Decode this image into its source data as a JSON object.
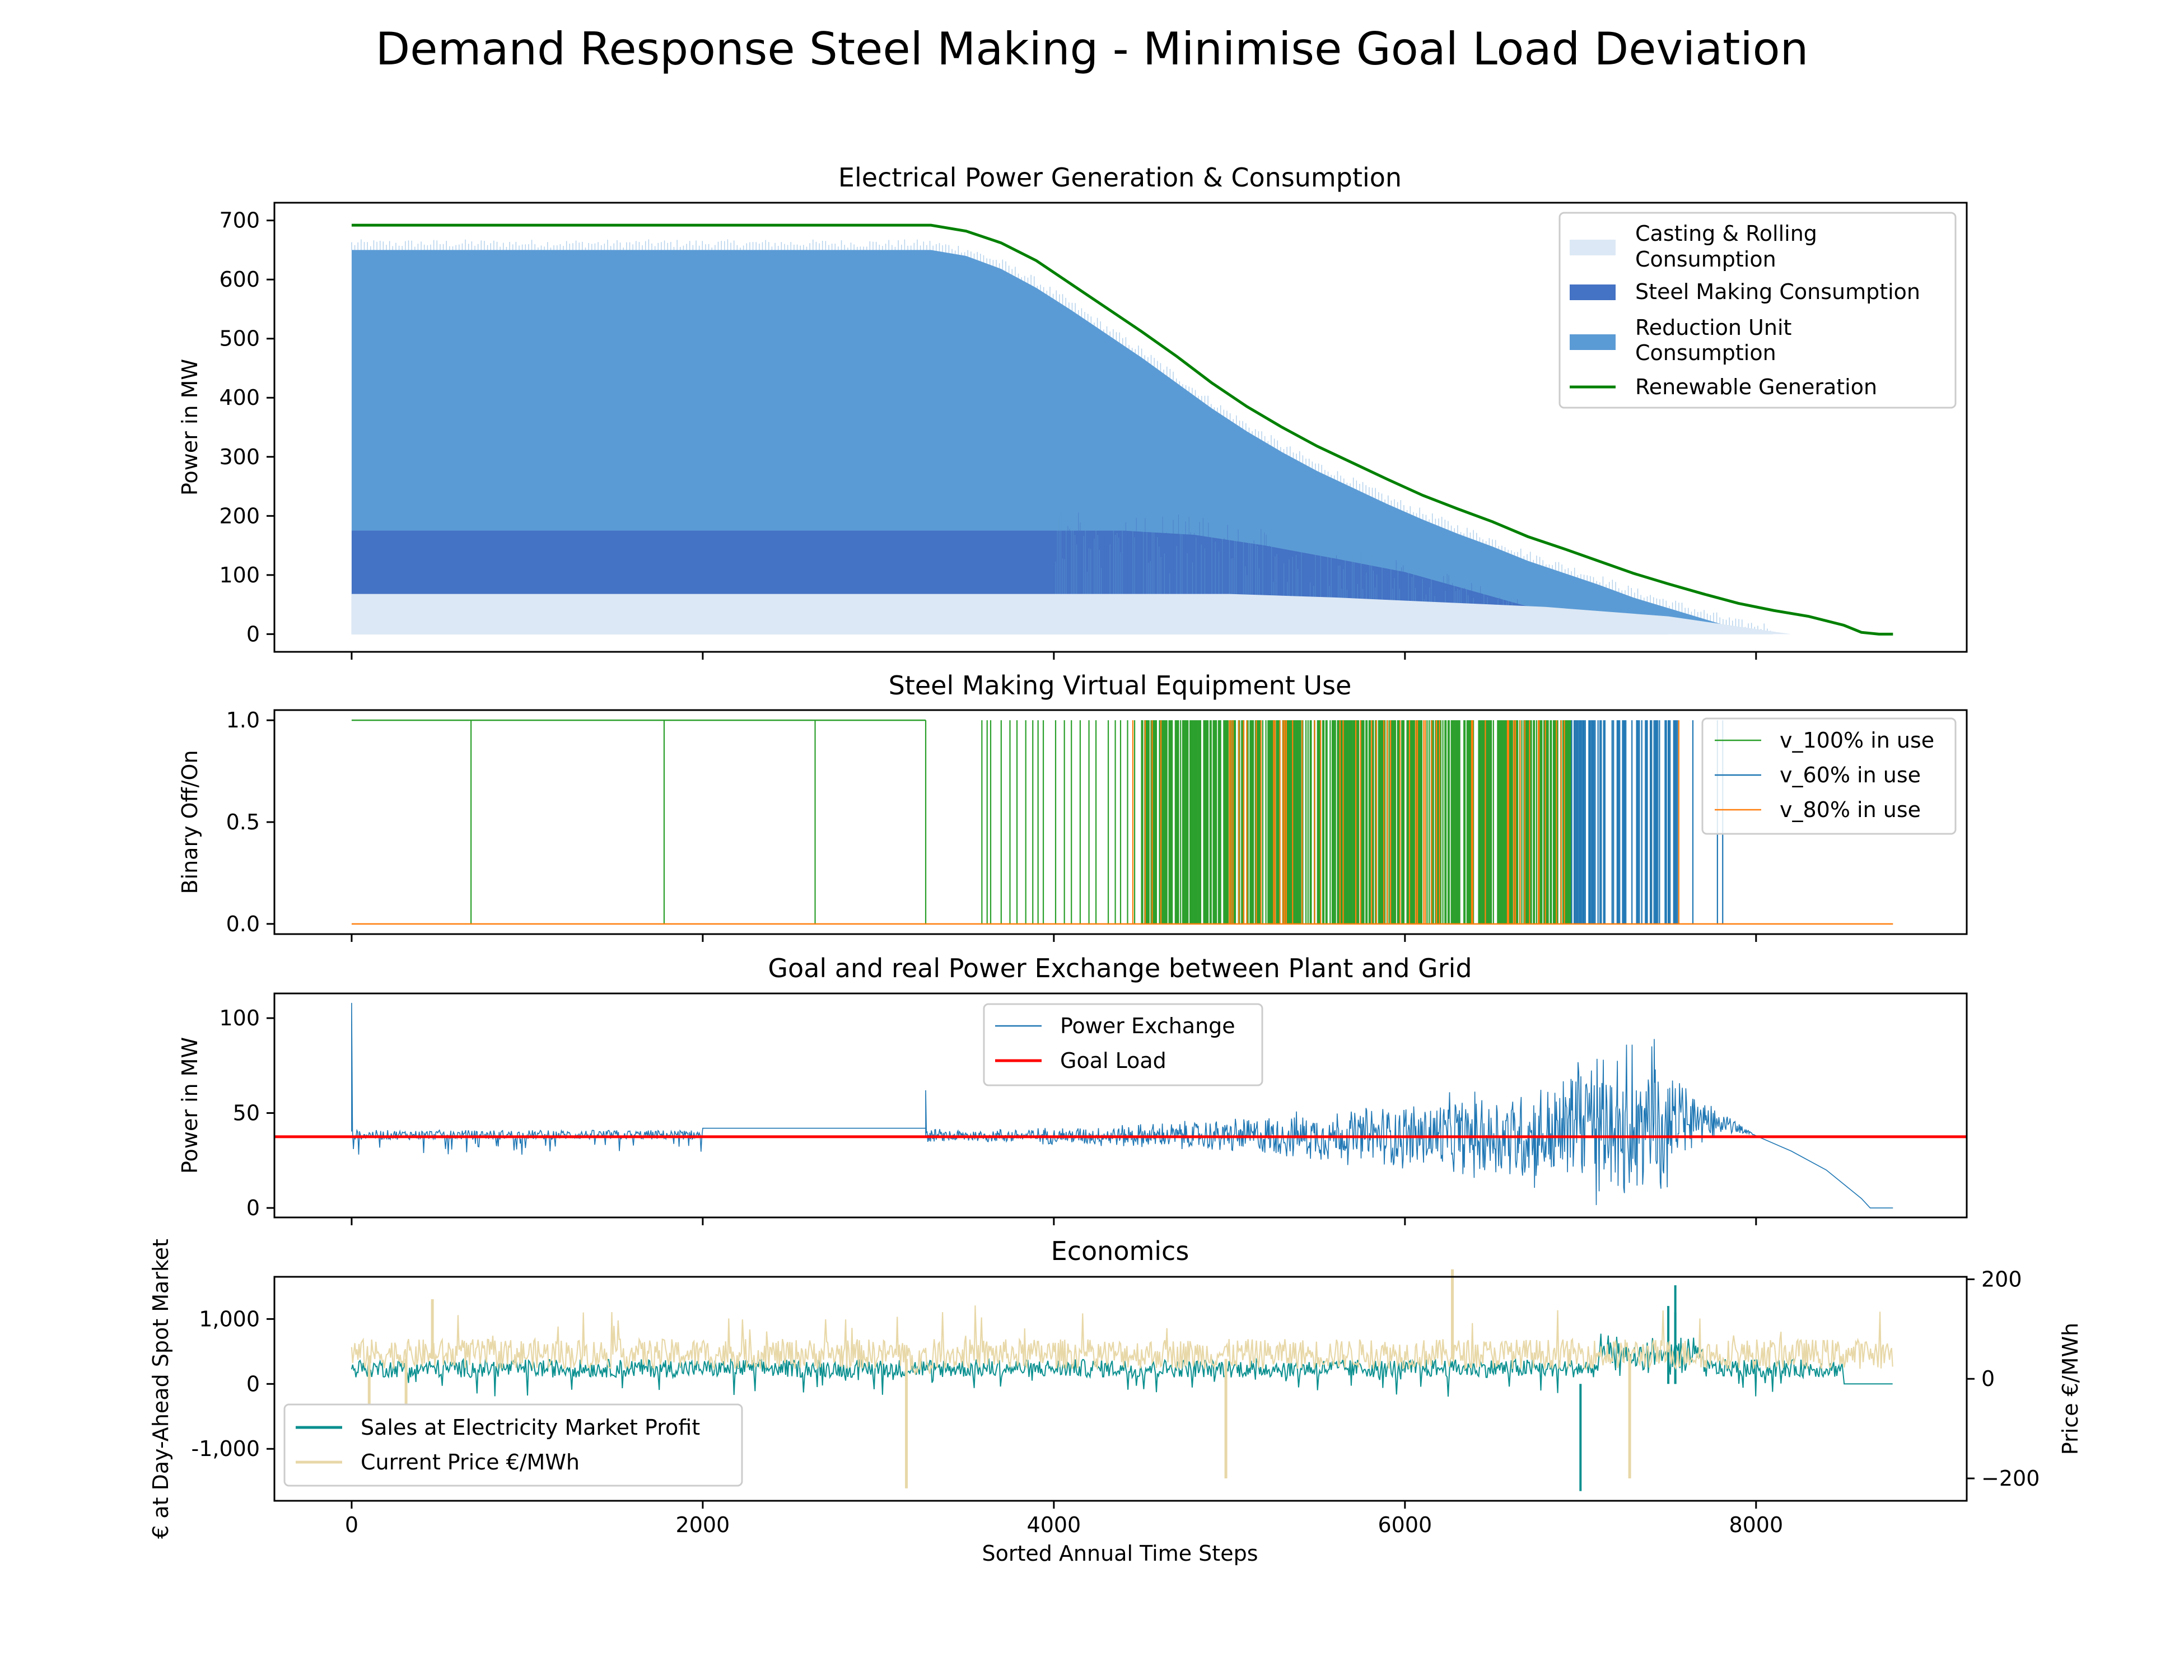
{
  "figure": {
    "suptitle": "Demand Response Steel Making - Minimise Goal Load Deviation"
  },
  "colors": {
    "casting": "#dce8f5",
    "steel": "#4472c4",
    "reduction": "#5b9bd5",
    "renewable": "#008000",
    "v100": "#2ca02c",
    "v60": "#1f77b4",
    "v80": "#ff7f0e",
    "exchange": "#1f77b4",
    "goal": "#ff0000",
    "sales": "#0a8f8f",
    "price": "#e8d8a8"
  },
  "chart_data": [
    {
      "id": "generation",
      "type": "area",
      "title": "Electrical Power Generation & Consumption",
      "ylabel": "Power in MW",
      "xlim": [
        -440,
        9200
      ],
      "ylim": [
        -30,
        730
      ],
      "yticks": [
        0,
        100,
        200,
        300,
        400,
        500,
        600,
        700
      ],
      "yticklabels": [
        "0",
        "100",
        "200",
        "300",
        "400",
        "500",
        "600",
        "700"
      ],
      "legend_position": "top-right",
      "legend": [
        {
          "label": "Casting & Rolling",
          "label2": "Consumption",
          "kind": "patch",
          "color_key": "casting"
        },
        {
          "label": "Steel Making Consumption",
          "label2": "",
          "kind": "patch",
          "color_key": "steel"
        },
        {
          "label": "Reduction Unit",
          "label2": "Consumption",
          "kind": "patch",
          "color_key": "reduction"
        },
        {
          "label": "Renewable Generation",
          "label2": "",
          "kind": "line",
          "color_key": "renewable"
        }
      ],
      "series": [
        {
          "name": "Renewable Generation",
          "x": [
            0,
            3300,
            3500,
            3700,
            3900,
            4100,
            4300,
            4500,
            4700,
            4900,
            5100,
            5300,
            5500,
            5700,
            5900,
            6100,
            6300,
            6500,
            6700,
            6900,
            7100,
            7300,
            7500,
            7700,
            7900,
            8100,
            8300,
            8500,
            8600,
            8700,
            8780
          ],
          "y": [
            692,
            692,
            682,
            662,
            632,
            592,
            552,
            512,
            470,
            425,
            385,
            350,
            318,
            290,
            262,
            235,
            212,
            190,
            165,
            145,
            124,
            103,
            85,
            68,
            52,
            40,
            30,
            15,
            3,
            0,
            0
          ]
        },
        {
          "name": "Reduction Unit Consumption",
          "x": [
            0,
            3300,
            3500,
            3700,
            3900,
            4100,
            4300,
            4500,
            4700,
            4900,
            5100,
            5300,
            5500,
            5700,
            5900,
            6100,
            6300,
            6500,
            6700,
            6900,
            7100,
            7300,
            7500,
            7700,
            7900,
            8100
          ],
          "y": [
            650,
            650,
            640,
            618,
            586,
            548,
            508,
            468,
            425,
            382,
            343,
            308,
            276,
            248,
            220,
            194,
            170,
            148,
            124,
            104,
            84,
            62,
            44,
            26,
            8,
            0
          ]
        },
        {
          "name": "Steel Making Consumption",
          "x": [
            0,
            4400,
            4800,
            5200,
            5600,
            6000,
            6300,
            6600,
            6900,
            7200,
            7500
          ],
          "y": [
            175,
            175,
            168,
            150,
            128,
            105,
            80,
            55,
            30,
            12,
            0
          ]
        },
        {
          "name": "Casting & Rolling Consumption",
          "x": [
            0,
            5000,
            5600,
            6200,
            6800,
            7500,
            8200
          ],
          "y": [
            68,
            68,
            62,
            54,
            46,
            30,
            0
          ]
        }
      ]
    },
    {
      "id": "equipment",
      "type": "line",
      "title": "Steel Making Virtual Equipment Use",
      "ylabel": "Binary Off/On",
      "xlim": [
        -440,
        9200
      ],
      "ylim": [
        -0.05,
        1.05
      ],
      "yticks": [
        0,
        0.5,
        1
      ],
      "yticklabels": [
        "0.0",
        "0.5",
        "1.0"
      ],
      "legend_position": "top-right",
      "legend": [
        {
          "label": "v_100% in use",
          "color_key": "v100"
        },
        {
          "label": "v_60% in use",
          "color_key": "v60"
        },
        {
          "label": "v_80% in use",
          "color_key": "v80"
        }
      ],
      "series": [
        {
          "name": "v_100% in use",
          "baseline": 1,
          "spikes_x": [
            680,
            1780,
            2640,
            3270,
            3590,
            3620,
            3640,
            3700,
            3750,
            3790,
            3840,
            3880,
            3910,
            3940,
            4010,
            4060,
            4100,
            4150,
            4200,
            4240,
            4310,
            4350,
            4380,
            4420,
            4460,
            4500
          ],
          "dense_range": [
            4500,
            6950
          ],
          "dense_density": 0.75,
          "baseline_end": 3270
        },
        {
          "name": "v_80% in use",
          "spikes_x": [
            4450,
            4520,
            4560,
            4610,
            5020,
            5260,
            5520,
            5880,
            6180,
            6380,
            6590,
            6760,
            7400,
            7560
          ],
          "dense_range": [
            5000,
            7050
          ],
          "dense_density": 0.15
        },
        {
          "name": "v_60% in use",
          "spikes_x": [
            7100,
            7180,
            7240,
            7320,
            7380,
            7450,
            7500,
            7640,
            7780,
            7810
          ],
          "dense_range": [
            6950,
            7560
          ],
          "dense_density": 0.55
        }
      ]
    },
    {
      "id": "exchange",
      "type": "line",
      "title": "Goal and real Power Exchange between Plant and Grid",
      "ylabel": "Power in MW",
      "xlim": [
        -440,
        9200
      ],
      "ylim": [
        -5,
        113
      ],
      "yticks": [
        0,
        50,
        100
      ],
      "yticklabels": [
        "0",
        "50",
        "100"
      ],
      "legend_position": "upper-center",
      "legend": [
        {
          "label": "Power Exchange",
          "color_key": "exchange"
        },
        {
          "label": "Goal Load",
          "color_key": "goal"
        }
      ],
      "series": [
        {
          "name": "Goal Load",
          "y": 37.5
        },
        {
          "name": "Power Exchange",
          "base": 38,
          "segments": [
            {
              "x0": 0,
              "x1": 2000,
              "kind": "band",
              "top": 41,
              "bottom": 36,
              "dips_to": 28
            },
            {
              "x0": 2000,
              "x1": 3270,
              "kind": "flat",
              "y": 42
            },
            {
              "x0": 3270,
              "x1": 8000,
              "kind": "noisy"
            },
            {
              "x0": 7500,
              "x1": 8000,
              "kind": "decline",
              "from": 70,
              "to": 38
            },
            {
              "x0": 8000,
              "x1": 8780,
              "kind": "tail",
              "points_x": [
                8000,
                8200,
                8400,
                8600,
                8650,
                8780
              ],
              "points_y": [
                38,
                30,
                20,
                5,
                0,
                0
              ]
            }
          ],
          "peaks": [
            {
              "x": 0,
              "y": 108
            },
            {
              "x": 3270,
              "y": 62
            },
            {
              "x": 7420,
              "y": 89
            }
          ]
        }
      ]
    },
    {
      "id": "economics",
      "type": "line",
      "title": "Economics",
      "xlabel": "Sorted Annual Time Steps",
      "ylabel": "€ at Day-Ahead Spot Market",
      "ylabel_right": "Price €/MWh",
      "xlim": [
        -440,
        9200
      ],
      "ylim": [
        -1800,
        1650
      ],
      "ylim_right": [
        -245,
        205
      ],
      "xticks": [
        0,
        2000,
        4000,
        6000,
        8000
      ],
      "xticklabels": [
        "0",
        "2000",
        "4000",
        "6000",
        "8000"
      ],
      "yticks": [
        -1000,
        0,
        1000
      ],
      "yticklabels": [
        "-1,000",
        "0",
        "1,000"
      ],
      "yticks_right": [
        -200,
        0,
        200
      ],
      "yticklabels_right": [
        "−200",
        "0",
        "200"
      ],
      "legend_position": "lower-left",
      "legend": [
        {
          "label": "Sales at Electricity Market Profit",
          "color_key": "sales"
        },
        {
          "label": "Current Price €/MWh",
          "color_key": "price"
        }
      ],
      "series": [
        {
          "name": "Sales at Electricity Market Profit",
          "typical": [
            100,
            500
          ],
          "spikes": [
            {
              "x": 7540,
              "y": 1520
            },
            {
              "x": 7000,
              "y": -1650
            },
            {
              "x": 7500,
              "y": 1200
            },
            {
              "x": 7540,
              "y": 1100
            }
          ]
        },
        {
          "name": "Current Price €/MWh",
          "typical": [
            20,
            80
          ],
          "spikes": [
            {
              "x": 460,
              "y": 160
            },
            {
              "x": 3160,
              "y": -220
            },
            {
              "x": 4980,
              "y": -200
            },
            {
              "x": 6270,
              "y": 220
            },
            {
              "x": 7280,
              "y": -200
            },
            {
              "x": 100,
              "y": -50
            },
            {
              "x": 310,
              "y": -50
            }
          ]
        }
      ]
    }
  ]
}
